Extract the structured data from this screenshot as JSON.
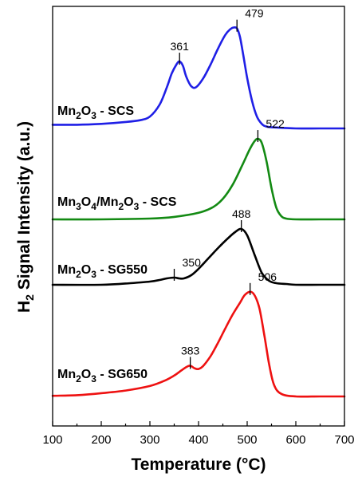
{
  "chart_data": {
    "type": "line",
    "xlabel": "Temperature (°C)",
    "ylabel": {
      "main": "H",
      "sub": "2",
      "rest": " Signal Intensity (a.u.)"
    },
    "xlim": [
      100,
      700
    ],
    "xticks": [
      100,
      200,
      300,
      400,
      500,
      600,
      700
    ],
    "y_ticks_shown": false,
    "grid": false,
    "series": [
      {
        "label_parts": [
          {
            "t": "Mn"
          },
          {
            "t": "2",
            "sub": true
          },
          {
            "t": "O"
          },
          {
            "t": "3",
            "sub": true
          },
          {
            "t": " - SCS"
          }
        ],
        "color": "#1f1fe6",
        "peaks": [
          361,
          479
        ],
        "x": [
          100,
          150,
          200,
          250,
          280,
          300,
          320,
          335,
          345,
          355,
          361,
          368,
          375,
          385,
          395,
          410,
          425,
          440,
          455,
          465,
          472,
          479,
          485,
          492,
          500,
          510,
          520,
          530,
          540,
          560,
          600,
          650,
          700
        ],
        "y": [
          0.04,
          0.04,
          0.05,
          0.07,
          0.09,
          0.13,
          0.26,
          0.45,
          0.6,
          0.7,
          0.73,
          0.68,
          0.56,
          0.46,
          0.45,
          0.55,
          0.7,
          0.87,
          1.02,
          1.08,
          1.1,
          1.09,
          1.0,
          0.8,
          0.55,
          0.3,
          0.13,
          0.05,
          0.02,
          0.01,
          0.0,
          0.0,
          0.0
        ]
      },
      {
        "label_parts": [
          {
            "t": "Mn"
          },
          {
            "t": "3",
            "sub": true
          },
          {
            "t": "O"
          },
          {
            "t": "4",
            "sub": true
          },
          {
            "t": "/Mn"
          },
          {
            "t": "2",
            "sub": true
          },
          {
            "t": "O"
          },
          {
            "t": "3",
            "sub": true
          },
          {
            "t": " - SCS"
          }
        ],
        "color": "#138a13",
        "peaks": [
          522
        ],
        "x": [
          100,
          200,
          300,
          350,
          400,
          430,
          450,
          470,
          490,
          505,
          515,
          522,
          530,
          540,
          550,
          560,
          570,
          580,
          600,
          650,
          700
        ],
        "y": [
          0.0,
          0.0,
          0.01,
          0.03,
          0.08,
          0.15,
          0.25,
          0.42,
          0.66,
          0.85,
          0.95,
          0.98,
          0.93,
          0.7,
          0.38,
          0.14,
          0.04,
          0.01,
          0.0,
          0.0,
          0.0
        ]
      },
      {
        "label_parts": [
          {
            "t": "Mn"
          },
          {
            "t": "2",
            "sub": true
          },
          {
            "t": "O"
          },
          {
            "t": "3",
            "sub": true
          },
          {
            "t": " - SG550"
          }
        ],
        "color": "#000000",
        "peaks": [
          350,
          488
        ],
        "x": [
          100,
          200,
          260,
          300,
          320,
          335,
          350,
          360,
          370,
          385,
          400,
          420,
          440,
          460,
          475,
          488,
          500,
          515,
          530,
          545,
          560,
          580,
          600,
          650,
          700
        ],
        "y": [
          0.0,
          0.0,
          0.02,
          0.04,
          0.06,
          0.08,
          0.09,
          0.08,
          0.08,
          0.12,
          0.2,
          0.33,
          0.46,
          0.58,
          0.66,
          0.7,
          0.62,
          0.38,
          0.15,
          0.05,
          0.02,
          0.01,
          0.0,
          0.0,
          0.0
        ]
      },
      {
        "label_parts": [
          {
            "t": "Mn"
          },
          {
            "t": "2",
            "sub": true
          },
          {
            "t": "O"
          },
          {
            "t": "3",
            "sub": true
          },
          {
            "t": " - SG650"
          }
        ],
        "color": "#ee1111",
        "peaks": [
          383,
          506
        ],
        "x": [
          100,
          150,
          200,
          250,
          300,
          330,
          350,
          365,
          375,
          383,
          392,
          400,
          410,
          425,
          440,
          455,
          470,
          485,
          495,
          506,
          515,
          525,
          535,
          545,
          555,
          570,
          600,
          650,
          700
        ],
        "y": [
          0.01,
          0.02,
          0.05,
          0.09,
          0.16,
          0.24,
          0.32,
          0.4,
          0.45,
          0.47,
          0.43,
          0.42,
          0.47,
          0.62,
          0.82,
          1.04,
          1.25,
          1.43,
          1.55,
          1.6,
          1.55,
          1.35,
          0.95,
          0.5,
          0.18,
          0.04,
          0.0,
          0.0,
          0.0
        ]
      }
    ]
  }
}
